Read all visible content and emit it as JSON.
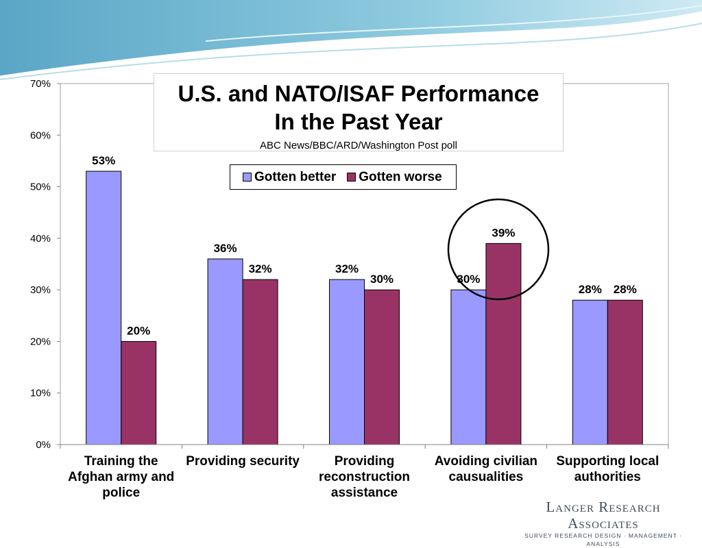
{
  "chart_data": {
    "type": "bar",
    "title": "U.S. and NATO/ISAF Performance In the Past Year",
    "title_lines": [
      "U.S. and NATO/ISAF Performance",
      "In the Past Year"
    ],
    "subtitle": "ABC News/BBC/ARD/Washington Post poll",
    "categories": [
      [
        "Training the",
        "Afghan army and",
        "police"
      ],
      [
        "Providing security"
      ],
      [
        "Providing",
        "reconstruction",
        "assistance"
      ],
      [
        "Avoiding civilian",
        "causualities"
      ],
      [
        "Supporting local",
        "authorities"
      ]
    ],
    "series": [
      {
        "name": "Gotten better",
        "values": [
          53,
          36,
          32,
          30,
          28
        ],
        "color": "#9999ff"
      },
      {
        "name": "Gotten worse",
        "values": [
          20,
          32,
          30,
          39,
          28
        ],
        "color": "#993366"
      }
    ],
    "data_labels": [
      [
        "53%",
        "36%",
        "32%",
        "30%",
        "28%"
      ],
      [
        "20%",
        "32%",
        "30%",
        "39%",
        "28%"
      ]
    ],
    "y_ticks": [
      {
        "value": 0,
        "label": "0%"
      },
      {
        "value": 10,
        "label": "10%"
      },
      {
        "value": 20,
        "label": "20%"
      },
      {
        "value": 30,
        "label": "30%"
      },
      {
        "value": 40,
        "label": "40%"
      },
      {
        "value": 50,
        "label": "50%"
      },
      {
        "value": 60,
        "label": "60%"
      },
      {
        "value": 70,
        "label": "70%"
      }
    ],
    "ylim": [
      0,
      70
    ],
    "grid": false,
    "legend_position": "top-center",
    "highlight_category": 3
  },
  "branding": {
    "name": "Langer Research Associates",
    "tagline": "SURVEY RESEARCH DESIGN · MANAGEMENT · ANALYSIS"
  }
}
